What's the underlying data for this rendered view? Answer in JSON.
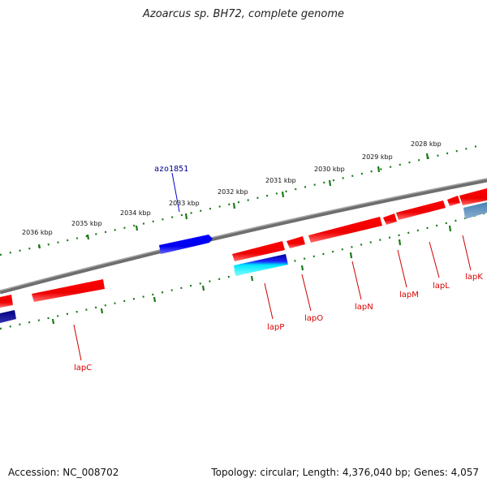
{
  "title": "Azoarcus sp. BH72, complete genome",
  "footer": {
    "accession": "Accession: NC_008702",
    "summary": "Topology: circular; Length: 4,376,040 bp; Genes: 4,057"
  },
  "colors": {
    "forward_gene": "#ff0000",
    "reverse_gene_dark": "#000080",
    "reverse_gene": "#1a1aff",
    "highlight_gene": "#0000ff",
    "cyan_gene": "#00e5ff",
    "steel_gene": "#4682b4",
    "backbone": "#808080",
    "tick": "#1a7a1a",
    "label_red": "#dd0000",
    "label_blue": "#00008b"
  },
  "scale": {
    "ticks": [
      {
        "label": "2028 kbp"
      },
      {
        "label": "2029 kbp"
      },
      {
        "label": "2030 kbp"
      },
      {
        "label": "2031 kbp"
      },
      {
        "label": "2032 kbp"
      },
      {
        "label": "2033 kbp"
      },
      {
        "label": "2034 kbp"
      },
      {
        "label": "2035 kbp"
      },
      {
        "label": "2036 kbp"
      }
    ]
  },
  "genes": {
    "highlight": {
      "label": "azo1851"
    },
    "labels": [
      {
        "label": "lapK"
      },
      {
        "label": "lapL"
      },
      {
        "label": "lapM"
      },
      {
        "label": "lapN"
      },
      {
        "label": "lapO"
      },
      {
        "label": "lapP"
      },
      {
        "label": "lapC"
      }
    ]
  }
}
